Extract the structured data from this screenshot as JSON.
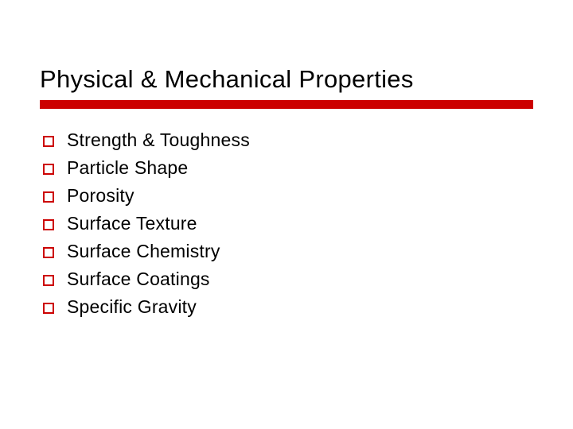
{
  "slide": {
    "title": "Physical & Mechanical Properties",
    "title_fontsize": 31,
    "title_color": "#000000",
    "accent_color": "#cc0000",
    "accent_bar_height": 11,
    "background_color": "#ffffff",
    "bullet_box_border_color": "#cc0000",
    "bullet_box_size": 14,
    "bullet_text_fontsize": 23,
    "bullet_text_color": "#000000",
    "items": [
      "Strength & Toughness",
      "Particle Shape",
      "Porosity",
      "Surface Texture",
      "Surface Chemistry",
      "Surface Coatings",
      "Specific Gravity"
    ]
  }
}
